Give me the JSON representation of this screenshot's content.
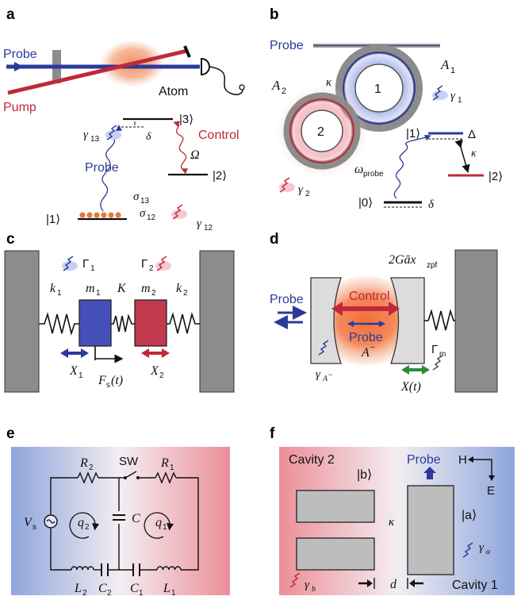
{
  "colors": {
    "probe": "#2b3a9a",
    "pump": "#c0283a",
    "green": "#2e8b3a",
    "gray": "#8c8c8c",
    "dark": "#111111"
  },
  "panels": [
    "a",
    "b",
    "c",
    "d",
    "e",
    "f"
  ],
  "panel_a": {
    "probe": "Probe",
    "pump": "Pump",
    "atom": "Atom",
    "state3": "|3⟩",
    "state2": "|2⟩",
    "state1": "|1⟩",
    "control": "Control",
    "omega": "Ω",
    "delta": "δ",
    "gamma13": "γ",
    "gamma13_sub": "13",
    "sigma13": "σ",
    "sigma13_sub": "13",
    "sigma12": "σ",
    "sigma12_sub": "12",
    "gamma12": "γ",
    "gamma12_sub": "12",
    "probe_lower": "Probe"
  },
  "panel_b": {
    "probe": "Probe",
    "A1": "A",
    "A1_sub": "1",
    "A2": "A",
    "A2_sub": "2",
    "kappa": "κ",
    "ring1": "1",
    "ring2": "2",
    "gamma1": "γ",
    "gamma1_sub": "1",
    "gamma2": "γ",
    "gamma2_sub": "2",
    "state1": "|1⟩",
    "state0": "|0⟩",
    "state2": "|2⟩",
    "Delta": "Δ",
    "kappa2": "κ",
    "omega_probe": "ω",
    "omega_probe_sub": "probe",
    "delta": "δ"
  },
  "panel_c": {
    "Gamma1": "Γ",
    "Gamma1_sub": "1",
    "Gamma2": "Γ",
    "Gamma2_sub": "2",
    "k1": "k",
    "k1_sub": "1",
    "m1": "m",
    "m1_sub": "1",
    "K": "K",
    "m2": "m",
    "m2_sub": "2",
    "k2": "k",
    "k2_sub": "2",
    "X1": "X",
    "X1_sub": "1",
    "X2": "X",
    "X2_sub": "2",
    "Fs": "F",
    "Fs_sub": "s",
    "Fs_tail": "(t)"
  },
  "panel_d": {
    "coupling": "2Gāx",
    "coupling_sub": "zpf",
    "probe_left": "Probe",
    "control": "Control",
    "probe_center": "Probe",
    "Aminus": "A",
    "Aminus_sup": "−",
    "Gamma_m": "Γ",
    "Gamma_m_sub": "m",
    "gammaA": "γ",
    "gammaA_sub": "A",
    "gammaA_subsup": "−",
    "Xt": "X(t)"
  },
  "panel_e": {
    "R2": "R",
    "R2_sub": "2",
    "SW": "SW",
    "R1": "R",
    "R1_sub": "1",
    "Vs": "V",
    "Vs_sub": "s",
    "q2": "q",
    "q2_sub": "2",
    "C": "C",
    "q1": "q",
    "q1_sub": "1",
    "L2": "L",
    "L2_sub": "2",
    "C2": "C",
    "C2_sub": "2",
    "C1": "C",
    "C1_sub": "1",
    "L1": "L",
    "L1_sub": "1"
  },
  "panel_f": {
    "cavity2": "Cavity 2",
    "b": "|b⟩",
    "probe": "Probe",
    "H": "H",
    "E": "E",
    "kappa": "κ",
    "a": "|a⟩",
    "gamma_a": "γ",
    "gamma_a_sub": "a",
    "gamma_b": "γ",
    "gamma_b_sub": "b",
    "d": "d",
    "cavity1": "Cavity 1"
  }
}
